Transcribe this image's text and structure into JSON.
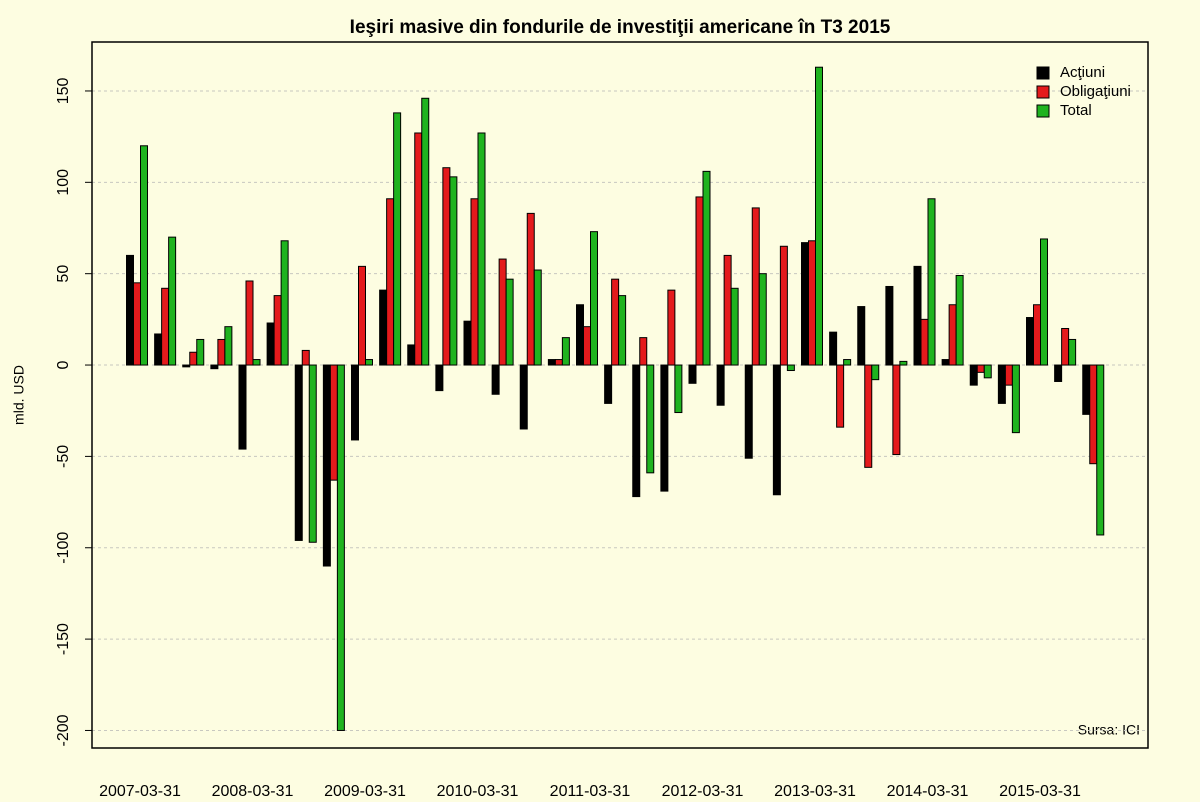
{
  "chart_data": {
    "type": "bar",
    "title": "Ieşiri masive din fondurile de investiţii americane în T3 2015",
    "y_label": "mld. USD",
    "annotation": "Sursa: ICI",
    "categories": [
      "2007-03-31",
      null,
      null,
      null,
      "2008-03-31",
      null,
      null,
      null,
      "2009-03-31",
      null,
      null,
      null,
      "2010-03-31",
      null,
      null,
      null,
      "2011-03-31",
      null,
      null,
      null,
      "2012-03-31",
      null,
      null,
      null,
      "2013-03-31",
      null,
      null,
      null,
      "2014-03-31",
      null,
      null,
      null,
      "2015-03-31",
      null,
      null
    ],
    "series": [
      {
        "name": "Acţiuni",
        "color": "#000000",
        "values": [
          60,
          17,
          -1,
          -2,
          -46,
          23,
          -96,
          -110,
          -41,
          41,
          11,
          -14,
          24,
          -16,
          -35,
          3,
          33,
          -21,
          -72,
          -69,
          -10,
          -22,
          -51,
          -71,
          67,
          18,
          32,
          43,
          54,
          3,
          -11,
          -21,
          26,
          -9,
          -27
        ]
      },
      {
        "name": "Obligaţiuni",
        "color": "#e41a1c",
        "values": [
          45,
          42,
          7,
          14,
          46,
          38,
          8,
          -63,
          54,
          91,
          127,
          108,
          91,
          58,
          83,
          3,
          21,
          47,
          15,
          41,
          92,
          60,
          86,
          65,
          68,
          -34,
          -56,
          -49,
          25,
          33,
          -4,
          -11,
          33,
          20,
          -54
        ]
      },
      {
        "name": "Total",
        "color": "#1fb31f",
        "values": [
          120,
          70,
          14,
          21,
          3,
          68,
          -97,
          -200,
          3,
          138,
          146,
          103,
          127,
          47,
          52,
          15,
          73,
          38,
          -59,
          -26,
          106,
          42,
          50,
          -3,
          163,
          3,
          -8,
          2,
          91,
          49,
          -7,
          -37,
          69,
          14,
          -93
        ]
      }
    ],
    "ylim": [
      -209.6,
      176.8
    ],
    "yticks": [
      -200,
      -150,
      -100,
      -50,
      0,
      50,
      100,
      150
    ],
    "grid": true,
    "legend": "top-right"
  }
}
